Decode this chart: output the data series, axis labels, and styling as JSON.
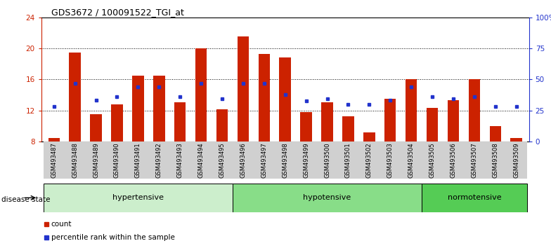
{
  "title": "GDS3672 / 100091522_TGI_at",
  "samples": [
    "GSM493487",
    "GSM493488",
    "GSM493489",
    "GSM493490",
    "GSM493491",
    "GSM493492",
    "GSM493493",
    "GSM493494",
    "GSM493495",
    "GSM493496",
    "GSM493497",
    "GSM493498",
    "GSM493499",
    "GSM493500",
    "GSM493501",
    "GSM493502",
    "GSM493503",
    "GSM493504",
    "GSM493505",
    "GSM493506",
    "GSM493507",
    "GSM493508",
    "GSM493509"
  ],
  "counts": [
    8.4,
    19.5,
    11.5,
    12.8,
    16.5,
    16.5,
    13.0,
    20.0,
    12.1,
    21.5,
    19.3,
    18.8,
    11.8,
    13.0,
    11.2,
    9.2,
    13.5,
    16.0,
    12.3,
    13.3,
    16.0,
    10.0,
    8.4
  ],
  "percentiles": [
    12.5,
    15.5,
    13.3,
    13.8,
    15.0,
    15.0,
    13.8,
    15.5,
    13.5,
    15.5,
    15.5,
    14.0,
    13.2,
    13.5,
    12.8,
    12.8,
    13.3,
    15.0,
    13.8,
    13.5,
    13.8,
    12.5,
    12.5
  ],
  "groups": [
    {
      "label": "hypertensive",
      "start": 0,
      "end": 8
    },
    {
      "label": "hypotensive",
      "start": 9,
      "end": 17
    },
    {
      "label": "normotensive",
      "start": 18,
      "end": 22
    }
  ],
  "group_colors": [
    "#cceecc",
    "#88dd88",
    "#55cc55"
  ],
  "ylim_left": [
    8,
    24
  ],
  "ylim_right": [
    0,
    100
  ],
  "yticks_left": [
    8,
    12,
    16,
    20,
    24
  ],
  "yticks_right": [
    0,
    25,
    50,
    75,
    100
  ],
  "bar_color": "#cc2200",
  "dot_color": "#2233cc",
  "label_count": "count",
  "label_percentile": "percentile rank within the sample",
  "disease_state_label": "disease state"
}
